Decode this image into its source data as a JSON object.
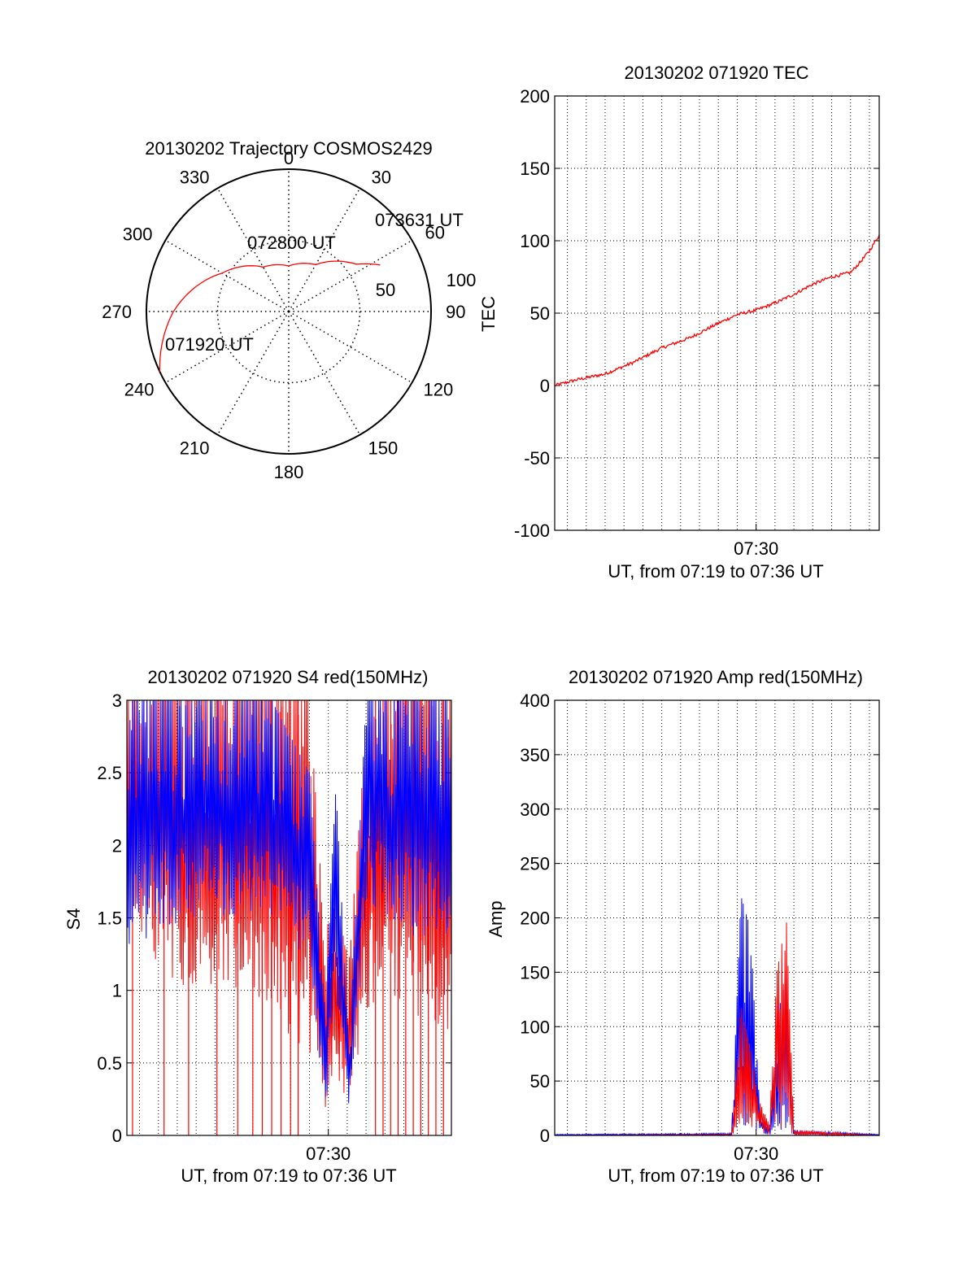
{
  "colors": {
    "primary": "#ff0000",
    "secondary": "#0000ff",
    "axis": "#000000",
    "grid": "#000000",
    "background": "#ffffff"
  },
  "chart_data": [
    {
      "type": "polar",
      "title": "20130202 Trajectory COSMOS2429",
      "theta_labels": [
        "0",
        "30",
        "60",
        "90",
        "120",
        "150",
        "180",
        "210",
        "240",
        "270",
        "300",
        "330"
      ],
      "radial_ticks": [
        "50",
        "100"
      ],
      "radial_max": 100,
      "annotations": [
        "071920 UT",
        "072800 UT",
        "073631 UT"
      ],
      "series": [
        {
          "color": "#ff0000",
          "points": [
            [
              245,
              100
            ],
            [
              270,
              81
            ],
            [
              300,
              54
            ],
            [
              330,
              36
            ],
            [
              0,
              32
            ],
            [
              30,
              38
            ],
            [
              55,
              58
            ],
            [
              63,
              72
            ]
          ]
        }
      ]
    },
    {
      "type": "line",
      "title": "20130202 071920 TEC",
      "ylabel": "TEC",
      "xlabel": "UT, from 07:19 to 07:36 UT",
      "x_tick_labels": [
        "07:30"
      ],
      "ylim": [
        -100,
        200
      ],
      "y_ticks": [
        "-100",
        "-50",
        "0",
        "50",
        "100",
        "150",
        "200"
      ],
      "xlim_minutes": [
        19.33,
        36.52
      ],
      "grid": true,
      "series": [
        {
          "color": "#ff0000",
          "x_minutes": [
            19.33,
            20.5,
            22.0,
            23.5,
            25.0,
            26.5,
            28.0,
            29.0,
            30.0,
            31.0,
            32.0,
            33.0,
            34.0,
            35.0,
            35.5,
            36.0,
            36.52
          ],
          "values": [
            0,
            4,
            8,
            16,
            26,
            33,
            43,
            49,
            52,
            57,
            63,
            70,
            75,
            78,
            85,
            93,
            104
          ]
        }
      ]
    },
    {
      "type": "line",
      "title": "20130202 071920 S4 red(150MHz)",
      "ylabel": "S4",
      "xlabel": "UT, from 07:19 to 07:36 UT",
      "x_tick_labels": [
        "07:30"
      ],
      "ylim": [
        0,
        3
      ],
      "y_ticks": [
        "0",
        "0.5",
        "1",
        "1.5",
        "2",
        "2.5",
        "3"
      ],
      "xlim_minutes": [
        19.33,
        36.52
      ],
      "grid": true,
      "series": [
        {
          "color": "#ff0000",
          "envelope": [
            [
              19.33,
              1.5,
              3.0
            ],
            [
              23.0,
              0.8,
              3.0
            ],
            [
              26.0,
              1.0,
              3.0
            ],
            [
              29.0,
              0.5,
              3.0
            ],
            [
              29.8,
              0.15,
              1.4
            ],
            [
              30.4,
              0.3,
              1.6
            ],
            [
              31.1,
              0.2,
              1.2
            ],
            [
              32.0,
              0.8,
              2.8
            ],
            [
              33.0,
              1.0,
              3.0
            ],
            [
              36.52,
              0.6,
              3.0
            ]
          ],
          "drop_to_zero_x": [
            19.63,
            21.3,
            22.6,
            24.1,
            25.2,
            26.0,
            26.5,
            27.0,
            27.5,
            28.0,
            28.4,
            32.5,
            32.9,
            33.3,
            33.7,
            34.1,
            34.5,
            34.9,
            35.3,
            35.7,
            36.1
          ]
        },
        {
          "color": "#0000ff",
          "envelope": [
            [
              19.33,
              1.3,
              3.0
            ],
            [
              23.0,
              1.5,
              3.0
            ],
            [
              27.0,
              1.5,
              3.0
            ],
            [
              29.0,
              1.2,
              2.5
            ],
            [
              29.8,
              0.1,
              0.9
            ],
            [
              30.4,
              1.0,
              2.4
            ],
            [
              31.1,
              0.1,
              0.6
            ],
            [
              32.0,
              1.6,
              3.0
            ],
            [
              36.52,
              1.2,
              3.0
            ]
          ]
        }
      ]
    },
    {
      "type": "line",
      "title": "20130202 071920 Amp red(150MHz)",
      "ylabel": "Amp",
      "xlabel": "UT, from 07:19 to 07:36 UT",
      "x_tick_labels": [
        "07:30"
      ],
      "ylim": [
        0,
        400
      ],
      "y_ticks": [
        "0",
        "50",
        "100",
        "150",
        "200",
        "250",
        "300",
        "350",
        "400"
      ],
      "xlim_minutes": [
        19.33,
        36.52
      ],
      "grid": true,
      "series": [
        {
          "color": "#0000ff",
          "envelope": [
            [
              19.33,
              0,
              1
            ],
            [
              28.7,
              0,
              2
            ],
            [
              29.2,
              5,
              220
            ],
            [
              29.7,
              5,
              190
            ],
            [
              30.2,
              2,
              20
            ],
            [
              30.7,
              0,
              8
            ],
            [
              31.1,
              5,
              100
            ],
            [
              31.6,
              5,
              160
            ],
            [
              32.0,
              0,
              5
            ],
            [
              36.52,
              0,
              1
            ]
          ]
        },
        {
          "color": "#ff0000",
          "envelope": [
            [
              19.33,
              0,
              0
            ],
            [
              28.7,
              0,
              1
            ],
            [
              29.2,
              3,
              120
            ],
            [
              29.7,
              3,
              80
            ],
            [
              30.2,
              2,
              30
            ],
            [
              30.7,
              0,
              10
            ],
            [
              31.1,
              3,
              150
            ],
            [
              31.6,
              3,
              200
            ],
            [
              32.0,
              0,
              5
            ],
            [
              36.52,
              0,
              0
            ]
          ]
        }
      ]
    }
  ]
}
